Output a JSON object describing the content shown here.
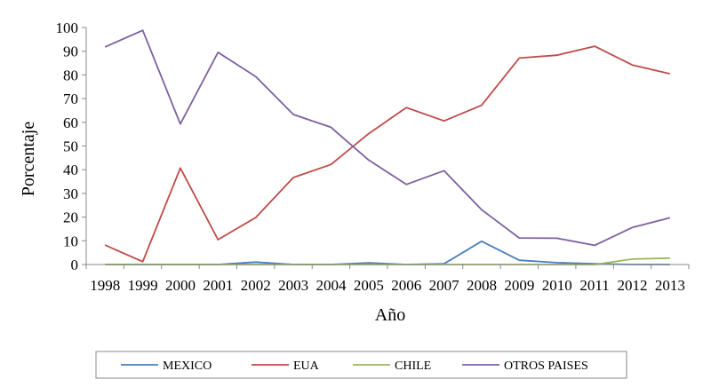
{
  "chart_data": {
    "type": "line",
    "title": "",
    "xlabel": "Año",
    "ylabel": "Porcentaje",
    "ylim": [
      0,
      100
    ],
    "yticks": [
      0,
      10,
      20,
      30,
      40,
      50,
      60,
      70,
      80,
      90,
      100
    ],
    "grid": false,
    "legend_position": "bottom",
    "categories": [
      "1998",
      "1999",
      "2000",
      "2001",
      "2002",
      "2003",
      "2004",
      "2005",
      "2006",
      "2007",
      "2008",
      "2009",
      "2010",
      "2011",
      "2012",
      "2013"
    ],
    "series": [
      {
        "name": "MEXICO",
        "color": "#4a7ebb",
        "values": [
          0,
          0,
          0,
          0,
          1,
          0,
          0,
          0.7,
          0,
          0.3,
          9.8,
          1.8,
          0.8,
          0.3,
          0,
          0
        ]
      },
      {
        "name": "EUA",
        "color": "#be4b48",
        "values": [
          8.2,
          1.2,
          40.7,
          10.5,
          19.8,
          36.7,
          42.2,
          55.2,
          66.2,
          60.6,
          67.2,
          87.1,
          88.3,
          92.1,
          84.2,
          80.5
        ]
      },
      {
        "name": "CHILE",
        "color": "#98b954",
        "values": [
          0,
          0,
          0,
          0,
          0,
          0,
          0,
          0,
          0,
          0,
          0,
          0,
          0,
          0,
          2.3,
          2.7
        ]
      },
      {
        "name": "OTROS PAISES",
        "color": "#7d60a0",
        "values": [
          91.8,
          98.8,
          59.3,
          89.5,
          79.3,
          63.3,
          57.9,
          44.1,
          33.8,
          39.6,
          23.1,
          11.2,
          11.1,
          8.1,
          15.6,
          19.7
        ]
      }
    ]
  }
}
